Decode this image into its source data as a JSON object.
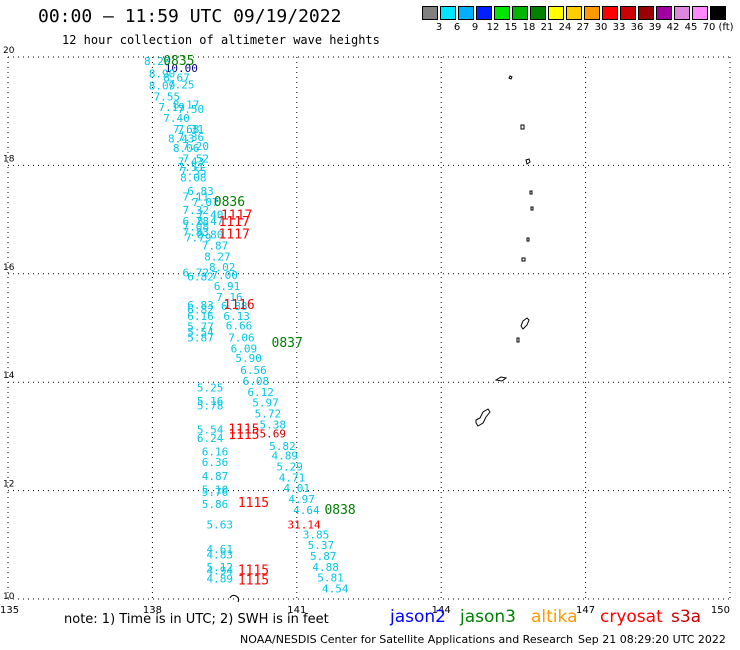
{
  "header": {
    "title": "00:00 – 11:59 UTC 09/19/2022",
    "subtitle": "12 hour collection of altimeter wave heights"
  },
  "colorbar": {
    "unit": "(ft)",
    "items": [
      {
        "label": "3",
        "color": "#808080"
      },
      {
        "label": "6",
        "color": "#00e5ff"
      },
      {
        "label": "9",
        "color": "#00b0ff"
      },
      {
        "label": "12",
        "color": "#0020ff"
      },
      {
        "label": "15",
        "color": "#00e600"
      },
      {
        "label": "18",
        "color": "#00b400"
      },
      {
        "label": "21",
        "color": "#008000"
      },
      {
        "label": "24",
        "color": "#ffff00"
      },
      {
        "label": "27",
        "color": "#ffcc00"
      },
      {
        "label": "30",
        "color": "#ff9900"
      },
      {
        "label": "33",
        "color": "#ff0000"
      },
      {
        "label": "36",
        "color": "#cc0000"
      },
      {
        "label": "39",
        "color": "#990000"
      },
      {
        "label": "42",
        "color": "#a000a0"
      },
      {
        "label": "45",
        "color": "#dd88dd"
      },
      {
        "label": "70",
        "color": "#ff88ff"
      },
      {
        "label": "",
        "color": "#000000"
      }
    ]
  },
  "footer": {
    "note": "note: 1) Time is in UTC; 2) SWH is in feet",
    "satellites": [
      {
        "name": "jason2",
        "color": "#0000ff"
      },
      {
        "name": "jason3",
        "color": "#008000"
      },
      {
        "name": "altika",
        "color": "#ff9900"
      },
      {
        "name": "cryosat",
        "color": "#ff0000"
      },
      {
        "name": "s3a",
        "color": "#cc0000"
      }
    ],
    "credit": "NOAA/NESDIS Center for Satellite Applications and Research",
    "generated": "Sep 21 08:29:20 UTC 2022"
  },
  "chart_data": {
    "type": "scatter",
    "title": "00:00 – 11:59 UTC 09/19/2022",
    "subtitle": "12 hour collection of altimeter wave heights",
    "xlim": [
      135,
      150
    ],
    "ylim": [
      10,
      20
    ],
    "xticks": [
      "135",
      "138",
      "141",
      "144",
      "147",
      "150"
    ],
    "yticks": [
      "10",
      "12",
      "14",
      "16",
      "18",
      "20"
    ],
    "grid": true,
    "colors": {
      "cyan": "#00c8e6",
      "cryosat": "#ff0000",
      "s3a": "#cc0000",
      "jason3": "#008000",
      "dark": "#000080"
    },
    "points": [
      {
        "lon": 138.1,
        "lat": 19.85,
        "label": "8.29",
        "c": "cyan"
      },
      {
        "lon": 138.6,
        "lat": 19.72,
        "label": "10.00",
        "c": "dark"
      },
      {
        "lon": 138.2,
        "lat": 19.62,
        "label": "8.90",
        "c": "cyan"
      },
      {
        "lon": 138.5,
        "lat": 19.55,
        "label": "8.67",
        "c": "cyan"
      },
      {
        "lon": 138.6,
        "lat": 19.42,
        "label": "7.25",
        "c": "cyan"
      },
      {
        "lon": 138.2,
        "lat": 19.4,
        "label": "8.09",
        "c": "cyan"
      },
      {
        "lon": 138.3,
        "lat": 19.2,
        "label": "7.55",
        "c": "cyan"
      },
      {
        "lon": 138.7,
        "lat": 19.05,
        "label": "8.17",
        "c": "cyan"
      },
      {
        "lon": 138.4,
        "lat": 19.0,
        "label": "7.19",
        "c": "cyan"
      },
      {
        "lon": 138.8,
        "lat": 18.97,
        "label": "7.50",
        "c": "cyan"
      },
      {
        "lon": 138.5,
        "lat": 18.8,
        "label": "7.40",
        "c": "cyan"
      },
      {
        "lon": 138.7,
        "lat": 18.6,
        "label": "7.68",
        "c": "cyan"
      },
      {
        "lon": 138.8,
        "lat": 18.6,
        "label": "7.31",
        "c": "cyan"
      },
      {
        "lon": 138.6,
        "lat": 18.42,
        "label": "8.43",
        "c": "cyan"
      },
      {
        "lon": 138.8,
        "lat": 18.45,
        "label": "7.36",
        "c": "cyan"
      },
      {
        "lon": 138.7,
        "lat": 18.25,
        "label": "8.06",
        "c": "cyan"
      },
      {
        "lon": 138.9,
        "lat": 18.28,
        "label": "7.20",
        "c": "cyan"
      },
      {
        "lon": 138.8,
        "lat": 18.0,
        "label": "7.43",
        "c": "cyan"
      },
      {
        "lon": 138.9,
        "lat": 18.05,
        "label": "7.52",
        "c": "cyan"
      },
      {
        "lon": 138.8,
        "lat": 17.9,
        "label": "7.51",
        "c": "cyan"
      },
      {
        "lon": 138.85,
        "lat": 17.82,
        "label": "7.55",
        "c": "cyan"
      },
      {
        "lon": 138.85,
        "lat": 17.7,
        "label": "8.08",
        "c": "cyan"
      },
      {
        "lon": 139.0,
        "lat": 17.45,
        "label": "6.83",
        "c": "cyan"
      },
      {
        "lon": 138.9,
        "lat": 17.35,
        "label": "7.11",
        "c": "cyan"
      },
      {
        "lon": 139.1,
        "lat": 17.25,
        "label": "7.07",
        "c": "cyan"
      },
      {
        "lon": 138.9,
        "lat": 17.1,
        "label": "7.32",
        "c": "cyan"
      },
      {
        "lon": 139.2,
        "lat": 17.02,
        "label": "7.40",
        "c": "cyan"
      },
      {
        "lon": 138.9,
        "lat": 16.9,
        "label": "6.78",
        "c": "cyan"
      },
      {
        "lon": 139.2,
        "lat": 16.9,
        "label": "8.47",
        "c": "cyan"
      },
      {
        "lon": 138.9,
        "lat": 16.8,
        "label": "7.08",
        "c": "cyan"
      },
      {
        "lon": 138.9,
        "lat": 16.7,
        "label": "7.83",
        "c": "cyan"
      },
      {
        "lon": 139.2,
        "lat": 16.65,
        "label": "8.80",
        "c": "cyan"
      },
      {
        "lon": 138.95,
        "lat": 16.6,
        "label": "7.79",
        "c": "cyan"
      },
      {
        "lon": 139.3,
        "lat": 16.45,
        "label": "7.87",
        "c": "cyan"
      },
      {
        "lon": 139.35,
        "lat": 16.25,
        "label": "8.27",
        "c": "cyan"
      },
      {
        "lon": 139.45,
        "lat": 16.05,
        "label": "8.02",
        "c": "cyan"
      },
      {
        "lon": 138.9,
        "lat": 15.95,
        "label": "6.72",
        "c": "cyan"
      },
      {
        "lon": 139.5,
        "lat": 15.9,
        "label": "7.00",
        "c": "cyan"
      },
      {
        "lon": 139.0,
        "lat": 15.88,
        "label": "6.82",
        "c": "cyan"
      },
      {
        "lon": 139.55,
        "lat": 15.7,
        "label": "6.91",
        "c": "cyan"
      },
      {
        "lon": 139.6,
        "lat": 15.5,
        "label": "7.16",
        "c": "cyan"
      },
      {
        "lon": 139.0,
        "lat": 15.35,
        "label": "6.83",
        "c": "cyan"
      },
      {
        "lon": 139.7,
        "lat": 15.33,
        "label": "6.88",
        "c": "cyan"
      },
      {
        "lon": 139.0,
        "lat": 15.27,
        "label": "6.82",
        "c": "cyan"
      },
      {
        "lon": 139.0,
        "lat": 15.15,
        "label": "6.16",
        "c": "cyan"
      },
      {
        "lon": 139.75,
        "lat": 15.15,
        "label": "6.13",
        "c": "cyan"
      },
      {
        "lon": 139.0,
        "lat": 14.95,
        "label": "5.77",
        "c": "cyan"
      },
      {
        "lon": 139.8,
        "lat": 14.97,
        "label": "6.66",
        "c": "cyan"
      },
      {
        "lon": 139.0,
        "lat": 14.85,
        "label": "5.54",
        "c": "cyan"
      },
      {
        "lon": 139.0,
        "lat": 14.75,
        "label": "5.87",
        "c": "cyan"
      },
      {
        "lon": 139.85,
        "lat": 14.75,
        "label": "7.06",
        "c": "cyan"
      },
      {
        "lon": 139.9,
        "lat": 14.55,
        "label": "6.09",
        "c": "cyan"
      },
      {
        "lon": 140.0,
        "lat": 14.37,
        "label": "5.90",
        "c": "cyan"
      },
      {
        "lon": 140.1,
        "lat": 14.15,
        "label": "6.56",
        "c": "cyan"
      },
      {
        "lon": 140.15,
        "lat": 13.95,
        "label": "6.08",
        "c": "cyan"
      },
      {
        "lon": 139.2,
        "lat": 13.83,
        "label": "5.25",
        "c": "cyan"
      },
      {
        "lon": 140.25,
        "lat": 13.75,
        "label": "6.12",
        "c": "cyan"
      },
      {
        "lon": 139.2,
        "lat": 13.58,
        "label": "5.16",
        "c": "cyan"
      },
      {
        "lon": 139.2,
        "lat": 13.5,
        "label": "5.78",
        "c": "cyan"
      },
      {
        "lon": 140.35,
        "lat": 13.55,
        "label": "5.97",
        "c": "cyan"
      },
      {
        "lon": 140.4,
        "lat": 13.35,
        "label": "5.72",
        "c": "cyan"
      },
      {
        "lon": 140.5,
        "lat": 13.15,
        "label": "5.38",
        "c": "cyan"
      },
      {
        "lon": 139.2,
        "lat": 13.05,
        "label": "5.54",
        "c": "cyan"
      },
      {
        "lon": 139.2,
        "lat": 12.9,
        "label": "6.24",
        "c": "cyan"
      },
      {
        "lon": 140.7,
        "lat": 12.75,
        "label": "5.82",
        "c": "cyan"
      },
      {
        "lon": 139.3,
        "lat": 12.65,
        "label": "6.16",
        "c": "cyan"
      },
      {
        "lon": 140.75,
        "lat": 12.57,
        "label": "4.89",
        "c": "cyan"
      },
      {
        "lon": 139.3,
        "lat": 12.45,
        "label": "6.36",
        "c": "cyan"
      },
      {
        "lon": 140.85,
        "lat": 12.37,
        "label": "5.29",
        "c": "cyan"
      },
      {
        "lon": 140.9,
        "lat": 12.17,
        "label": "4.71",
        "c": "cyan"
      },
      {
        "lon": 139.3,
        "lat": 12.2,
        "label": "4.87",
        "c": "cyan"
      },
      {
        "lon": 141.0,
        "lat": 11.97,
        "label": "4.01",
        "c": "cyan"
      },
      {
        "lon": 139.3,
        "lat": 11.95,
        "label": "5.10",
        "c": "cyan"
      },
      {
        "lon": 139.3,
        "lat": 11.9,
        "label": "5.76",
        "c": "cyan"
      },
      {
        "lon": 141.1,
        "lat": 11.77,
        "label": "4.97",
        "c": "cyan"
      },
      {
        "lon": 139.3,
        "lat": 11.68,
        "label": "5.86",
        "c": "cyan"
      },
      {
        "lon": 141.2,
        "lat": 11.57,
        "label": "4.64",
        "c": "cyan"
      },
      {
        "lon": 139.4,
        "lat": 11.3,
        "label": "5.63",
        "c": "cyan"
      },
      {
        "lon": 141.4,
        "lat": 11.12,
        "label": "3.85",
        "c": "cyan"
      },
      {
        "lon": 141.5,
        "lat": 10.92,
        "label": "5.37",
        "c": "cyan"
      },
      {
        "lon": 139.4,
        "lat": 10.85,
        "label": "4.61",
        "c": "cyan"
      },
      {
        "lon": 139.4,
        "lat": 10.75,
        "label": "4.83",
        "c": "cyan"
      },
      {
        "lon": 141.55,
        "lat": 10.72,
        "label": "5.87",
        "c": "cyan"
      },
      {
        "lon": 139.4,
        "lat": 10.52,
        "label": "5.12",
        "c": "cyan"
      },
      {
        "lon": 141.6,
        "lat": 10.52,
        "label": "4.88",
        "c": "cyan"
      },
      {
        "lon": 139.4,
        "lat": 10.45,
        "label": "4.94",
        "c": "cyan"
      },
      {
        "lon": 141.7,
        "lat": 10.32,
        "label": "5.81",
        "c": "cyan"
      },
      {
        "lon": 139.4,
        "lat": 10.3,
        "label": "4.89",
        "c": "cyan"
      },
      {
        "lon": 141.8,
        "lat": 10.12,
        "label": "4.54",
        "c": "cyan"
      },
      {
        "lon": 139.75,
        "lat": 17.0,
        "label": "1117",
        "c": "cryosat"
      },
      {
        "lon": 139.7,
        "lat": 16.88,
        "label": "1117",
        "c": "cryosat"
      },
      {
        "lon": 139.7,
        "lat": 16.65,
        "label": "1117",
        "c": "cryosat"
      },
      {
        "lon": 139.8,
        "lat": 15.35,
        "label": "1116",
        "c": "cryosat"
      },
      {
        "lon": 139.9,
        "lat": 13.05,
        "label": "1115",
        "c": "cryosat"
      },
      {
        "lon": 139.9,
        "lat": 12.95,
        "label": "1115",
        "c": "cryosat"
      },
      {
        "lon": 140.5,
        "lat": 12.98,
        "label": "5.69",
        "c": "s3a"
      },
      {
        "lon": 140.1,
        "lat": 11.7,
        "label": "1115",
        "c": "cryosat"
      },
      {
        "lon": 141.15,
        "lat": 11.3,
        "label": "31.14",
        "c": "cryosat"
      },
      {
        "lon": 140.1,
        "lat": 10.45,
        "label": "1115",
        "c": "cryosat"
      },
      {
        "lon": 140.1,
        "lat": 10.27,
        "label": "1115",
        "c": "cryosat"
      },
      {
        "lon": 138.55,
        "lat": 19.85,
        "label": "0835",
        "c": "jason3"
      },
      {
        "lon": 139.6,
        "lat": 17.25,
        "label": "0836",
        "c": "jason3"
      },
      {
        "lon": 140.8,
        "lat": 14.65,
        "label": "0837",
        "c": "jason3"
      },
      {
        "lon": 141.9,
        "lat": 11.57,
        "label": "0838",
        "c": "jason3"
      }
    ]
  }
}
